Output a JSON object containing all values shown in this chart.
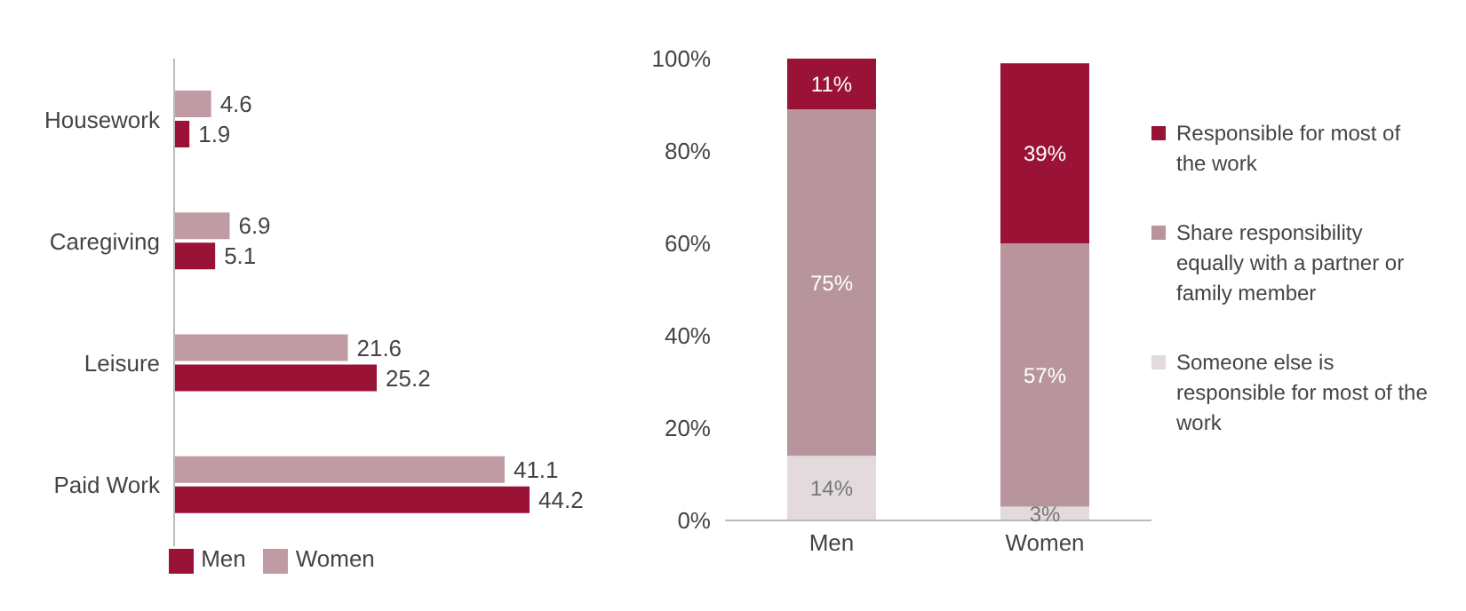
{
  "chart_data": [
    {
      "type": "bar",
      "orientation": "horizontal",
      "categories": [
        "Housework",
        "Caregiving",
        "Leisure",
        "Paid Work"
      ],
      "series": [
        {
          "name": "Women",
          "color": "#c09ba3",
          "values": [
            4.6,
            6.9,
            21.6,
            41.1
          ]
        },
        {
          "name": "Men",
          "color": "#9b1237",
          "values": [
            1.9,
            5.1,
            25.2,
            44.2
          ]
        }
      ],
      "data_labels": true,
      "legend": "bottom",
      "tick_labels": "y"
    },
    {
      "type": "bar",
      "stacked": true,
      "categories": [
        "Men",
        "Women"
      ],
      "series": [
        {
          "name": "Someone else is responsible for most of the work",
          "color": "#e2dadc",
          "values": [
            14,
            3
          ],
          "value_labels": [
            "14%",
            "3%"
          ]
        },
        {
          "name": "Share responsibility equally with a partner or family member",
          "color": "#b8959d",
          "values": [
            75,
            57
          ],
          "value_labels": [
            "75%",
            "57%"
          ]
        },
        {
          "name": "Responsible for most of the work",
          "color": "#9b1237",
          "values": [
            11,
            39
          ],
          "value_labels": [
            "11%",
            "39%"
          ]
        }
      ],
      "ylim": [
        0,
        100
      ],
      "yticks": [
        {
          "value": 0,
          "label": "0%"
        },
        {
          "value": 20,
          "label": "20%"
        },
        {
          "value": 40,
          "label": "40%"
        },
        {
          "value": 60,
          "label": "60%"
        },
        {
          "value": 80,
          "label": "80%"
        },
        {
          "value": 100,
          "label": "100%"
        }
      ],
      "legend": "right"
    }
  ]
}
